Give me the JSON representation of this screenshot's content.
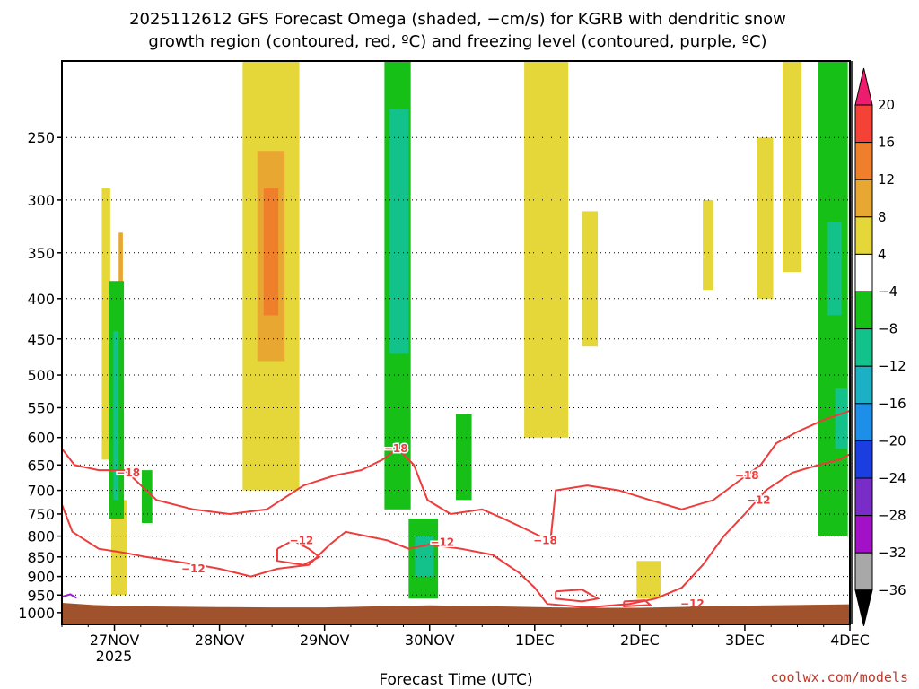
{
  "chart_data": {
    "type": "heatmap",
    "title_line1": "2025112612 GFS Forecast Omega (shaded, −cm/s) for KGRB with dendritic snow",
    "title_line2": "growth region (contoured, red, ºC) and freezing level (contoured, purple, ºC)",
    "xlabel": "Forecast Time (UTC)",
    "credit": "coolwx.com/models",
    "x_ticks": [
      "27NOV",
      "28NOV",
      "29NOV",
      "30NOV",
      "1DEC",
      "2DEC",
      "3DEC",
      "4DEC"
    ],
    "x_year": "2025",
    "xlim_days": [
      26.5,
      34.0
    ],
    "y_ticks": [
      "250",
      "300",
      "350",
      "400",
      "450",
      "500",
      "550",
      "600",
      "650",
      "700",
      "750",
      "800",
      "850",
      "900",
      "950",
      "1000"
    ],
    "ylim_hpa": [
      200,
      1035
    ],
    "colorbar": {
      "labels": [
        "20",
        "16",
        "12",
        "8",
        "4",
        "−4",
        "−8",
        "−12",
        "−16",
        "−20",
        "−24",
        "−28",
        "−32",
        "−36"
      ],
      "colors": [
        "#ee1c6e",
        "#f44236",
        "#ef7f2a",
        "#e8a731",
        "#e5d63a",
        "#ffffff",
        "#17c017",
        "#13c28a",
        "#1bb0c4",
        "#1d8fe8",
        "#1a3ee0",
        "#7a2cc6",
        "#a210c8",
        "#a8a8a8",
        "#000000"
      ]
    },
    "omega_regions": [
      {
        "color": "#e5d63a",
        "t": [
          26.88,
          26.96
        ],
        "p": [
          290,
          640
        ]
      },
      {
        "color": "#e8a731",
        "t": [
          27.04,
          27.08
        ],
        "p": [
          330,
          420
        ]
      },
      {
        "color": "#e5d63a",
        "t": [
          26.97,
          27.12
        ],
        "p": [
          720,
          950
        ]
      },
      {
        "color": "#e5d63a",
        "t": [
          28.22,
          28.76
        ],
        "p": [
          200,
          700
        ]
      },
      {
        "color": "#e8a731",
        "t": [
          28.36,
          28.62
        ],
        "p": [
          260,
          480
        ]
      },
      {
        "color": "#ef7f2a",
        "t": [
          28.42,
          28.56
        ],
        "p": [
          290,
          420
        ]
      },
      {
        "color": "#e5d63a",
        "t": [
          30.9,
          31.32
        ],
        "p": [
          200,
          600
        ]
      },
      {
        "color": "#e5d63a",
        "t": [
          31.45,
          31.6
        ],
        "p": [
          310,
          460
        ]
      },
      {
        "color": "#e5d63a",
        "t": [
          31.97,
          32.2
        ],
        "p": [
          860,
          960
        ]
      },
      {
        "color": "#e5d63a",
        "t": [
          32.6,
          32.7
        ],
        "p": [
          300,
          390
        ]
      },
      {
        "color": "#e5d63a",
        "t": [
          33.12,
          33.27
        ],
        "p": [
          250,
          400
        ]
      },
      {
        "color": "#e5d63a",
        "t": [
          33.36,
          33.54
        ],
        "p": [
          200,
          370
        ]
      },
      {
        "color": "#17c017",
        "t": [
          26.95,
          27.09
        ],
        "p": [
          380,
          760
        ]
      },
      {
        "color": "#13c28a",
        "t": [
          26.99,
          27.04
        ],
        "p": [
          440,
          720
        ]
      },
      {
        "color": "#17c017",
        "t": [
          27.26,
          27.36
        ],
        "p": [
          660,
          770
        ]
      },
      {
        "color": "#17c017",
        "t": [
          29.57,
          29.82
        ],
        "p": [
          200,
          740
        ]
      },
      {
        "color": "#13c28a",
        "t": [
          29.62,
          29.8
        ],
        "p": [
          230,
          470
        ]
      },
      {
        "color": "#17c017",
        "t": [
          29.8,
          30.08
        ],
        "p": [
          760,
          960
        ]
      },
      {
        "color": "#13c28a",
        "t": [
          29.86,
          30.04
        ],
        "p": [
          800,
          900
        ]
      },
      {
        "color": "#17c017",
        "t": [
          30.25,
          30.4
        ],
        "p": [
          560,
          720
        ]
      },
      {
        "color": "#17c017",
        "t": [
          33.7,
          33.98
        ],
        "p": [
          200,
          800
        ]
      },
      {
        "color": "#13c28a",
        "t": [
          33.79,
          33.92
        ],
        "p": [
          320,
          420
        ]
      },
      {
        "color": "#13c28a",
        "t": [
          33.86,
          33.98
        ],
        "p": [
          520,
          620
        ]
      }
    ],
    "contours": [
      {
        "label": "−18",
        "color": "#ee3b3b",
        "points": [
          [
            26.5,
            620
          ],
          [
            26.62,
            650
          ],
          [
            26.85,
            660
          ],
          [
            27.1,
            660
          ],
          [
            27.4,
            720
          ],
          [
            27.75,
            740
          ],
          [
            28.1,
            750
          ],
          [
            28.45,
            740
          ],
          [
            28.8,
            690
          ],
          [
            29.1,
            670
          ],
          [
            29.35,
            660
          ],
          [
            29.55,
            640
          ],
          [
            29.7,
            620
          ],
          [
            29.85,
            650
          ],
          [
            29.98,
            720
          ],
          [
            30.2,
            750
          ],
          [
            30.5,
            740
          ],
          [
            30.7,
            760
          ],
          [
            30.88,
            780
          ],
          [
            31.05,
            800
          ]
        ]
      },
      {
        "label": "−18",
        "color": "#ee3b3b",
        "points": [
          [
            31.15,
            810
          ],
          [
            31.2,
            700
          ],
          [
            31.5,
            690
          ],
          [
            31.8,
            700
          ],
          [
            32.1,
            720
          ],
          [
            32.4,
            740
          ],
          [
            32.7,
            720
          ],
          [
            32.95,
            680
          ],
          [
            33.15,
            650
          ],
          [
            33.3,
            610
          ],
          [
            33.5,
            590
          ],
          [
            33.75,
            570
          ],
          [
            34.0,
            555
          ]
        ]
      },
      {
        "label": "−12",
        "color": "#ee3b3b",
        "points": [
          [
            26.5,
            730
          ],
          [
            26.6,
            790
          ],
          [
            26.85,
            830
          ],
          [
            27.1,
            840
          ],
          [
            27.3,
            850
          ],
          [
            27.55,
            860
          ],
          [
            27.8,
            870
          ],
          [
            28.0,
            880
          ],
          [
            28.3,
            900
          ],
          [
            28.55,
            880
          ],
          [
            28.85,
            870
          ],
          [
            29.05,
            820
          ],
          [
            29.2,
            790
          ],
          [
            29.4,
            800
          ],
          [
            29.6,
            810
          ],
          [
            29.8,
            830
          ],
          [
            30.0,
            820
          ],
          [
            30.3,
            830
          ],
          [
            30.6,
            845
          ],
          [
            30.85,
            890
          ],
          [
            31.0,
            930
          ],
          [
            31.12,
            975
          ],
          [
            31.5,
            985
          ],
          [
            31.9,
            975
          ],
          [
            32.15,
            960
          ],
          [
            32.4,
            930
          ],
          [
            32.6,
            870
          ],
          [
            32.8,
            800
          ],
          [
            33.0,
            750
          ],
          [
            33.2,
            700
          ],
          [
            33.45,
            665
          ],
          [
            33.7,
            650
          ],
          [
            33.9,
            640
          ],
          [
            34.0,
            630
          ]
        ]
      },
      {
        "label": "",
        "color": "#ee3b3b",
        "points": [
          [
            28.55,
            830
          ],
          [
            28.7,
            810
          ],
          [
            28.85,
            830
          ],
          [
            28.95,
            850
          ],
          [
            28.8,
            870
          ],
          [
            28.55,
            860
          ],
          [
            28.55,
            830
          ]
        ]
      },
      {
        "label": "",
        "color": "#ee3b3b",
        "points": [
          [
            31.2,
            940
          ],
          [
            31.45,
            935
          ],
          [
            31.6,
            960
          ],
          [
            31.45,
            968
          ],
          [
            31.2,
            960
          ],
          [
            31.2,
            940
          ]
        ]
      },
      {
        "label": "",
        "color": "#ee3b3b",
        "points": [
          [
            31.85,
            968
          ],
          [
            32.05,
            965
          ],
          [
            32.1,
            978
          ],
          [
            31.85,
            982
          ],
          [
            31.85,
            968
          ]
        ]
      }
    ],
    "contour_labels": [
      {
        "text": "−18",
        "t": [
          27.13
        ],
        "p": [
          665
        ]
      },
      {
        "text": "−18",
        "t": [
          29.68
        ],
        "p": [
          620
        ]
      },
      {
        "text": "−18",
        "t": [
          31.1
        ],
        "p": [
          810
        ]
      },
      {
        "text": "−18",
        "t": [
          33.02
        ],
        "p": [
          670
        ]
      },
      {
        "text": "−12",
        "t": [
          27.75
        ],
        "p": [
          880
        ]
      },
      {
        "text": "−12",
        "t": [
          28.78
        ],
        "p": [
          810
        ]
      },
      {
        "text": "−12",
        "t": [
          30.12
        ],
        "p": [
          815
        ]
      },
      {
        "text": "−12",
        "t": [
          32.5
        ],
        "p": [
          975
        ]
      },
      {
        "text": "−12",
        "t": [
          33.13
        ],
        "p": [
          720
        ]
      }
    ],
    "freezing_level": {
      "color": "#9b1fd2",
      "points": [
        [
          26.5,
          955
        ],
        [
          26.58,
          948
        ],
        [
          26.64,
          958
        ]
      ]
    },
    "terrain": {
      "color": "#a0522d",
      "points": [
        [
          26.5,
          972
        ],
        [
          26.8,
          978
        ],
        [
          27.2,
          982
        ],
        [
          27.6,
          983
        ],
        [
          28.0,
          984
        ],
        [
          28.5,
          985
        ],
        [
          29.0,
          985
        ],
        [
          29.5,
          982
        ],
        [
          30.0,
          979
        ],
        [
          30.4,
          981
        ],
        [
          30.8,
          983
        ],
        [
          31.2,
          985
        ],
        [
          31.6,
          986
        ],
        [
          32.0,
          986
        ],
        [
          32.5,
          983
        ],
        [
          33.0,
          980
        ],
        [
          33.5,
          978
        ],
        [
          34.0,
          976
        ]
      ]
    }
  }
}
